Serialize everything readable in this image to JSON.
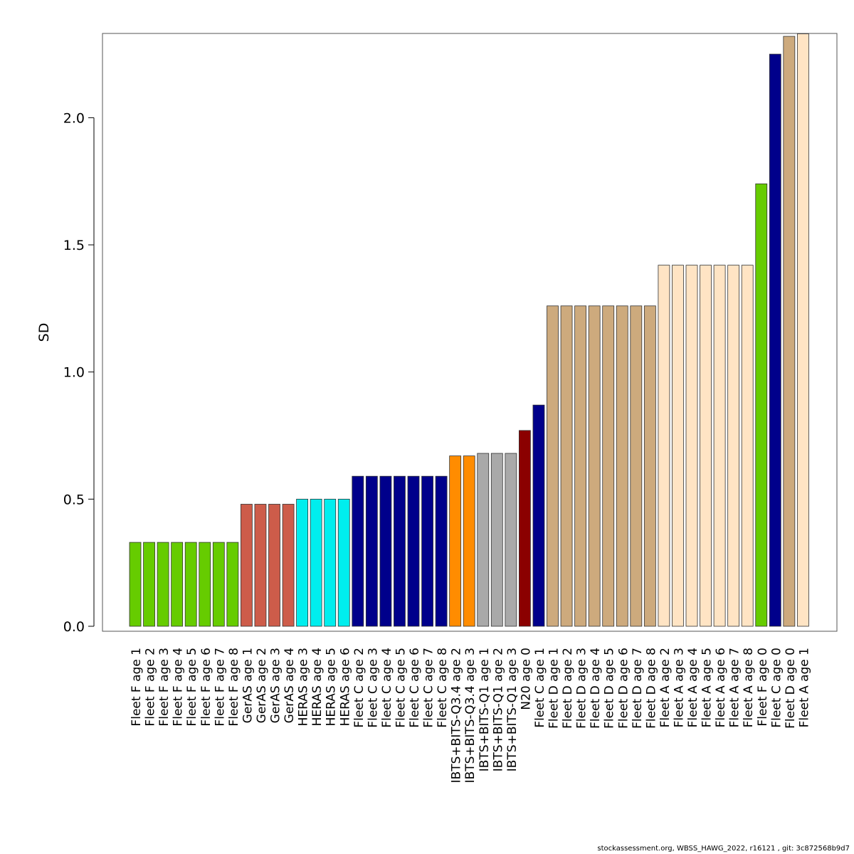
{
  "footer": "stockassessment.org, WBSS_HAWG_2022, r16121 , git: 3c872568b9d7",
  "chart_data": {
    "type": "bar",
    "ylabel": "SD",
    "ylim": [
      0,
      2.33
    ],
    "yticks": [
      "0.0",
      "0.5",
      "1.0",
      "1.5",
      "2.0"
    ],
    "grid": false,
    "bars": [
      {
        "label": "Fleet F age 1",
        "value": 0.33,
        "color": "#66CC00"
      },
      {
        "label": "Fleet F age 2",
        "value": 0.33,
        "color": "#66CC00"
      },
      {
        "label": "Fleet F age 3",
        "value": 0.33,
        "color": "#66CC00"
      },
      {
        "label": "Fleet F age 4",
        "value": 0.33,
        "color": "#66CC00"
      },
      {
        "label": "Fleet F age 5",
        "value": 0.33,
        "color": "#66CC00"
      },
      {
        "label": "Fleet F age 6",
        "value": 0.33,
        "color": "#66CC00"
      },
      {
        "label": "Fleet F age 7",
        "value": 0.33,
        "color": "#66CC00"
      },
      {
        "label": "Fleet F age 8",
        "value": 0.33,
        "color": "#66CC00"
      },
      {
        "label": "GerAS age 1",
        "value": 0.48,
        "color": "#CD5C4A"
      },
      {
        "label": "GerAS age 2",
        "value": 0.48,
        "color": "#CD5C4A"
      },
      {
        "label": "GerAS age 3",
        "value": 0.48,
        "color": "#CD5C4A"
      },
      {
        "label": "GerAS age 4",
        "value": 0.48,
        "color": "#CD5C4A"
      },
      {
        "label": "HERAS age 3",
        "value": 0.5,
        "color": "#00EEEE"
      },
      {
        "label": "HERAS age 4",
        "value": 0.5,
        "color": "#00EEEE"
      },
      {
        "label": "HERAS age 5",
        "value": 0.5,
        "color": "#00EEEE"
      },
      {
        "label": "HERAS age 6",
        "value": 0.5,
        "color": "#00EEEE"
      },
      {
        "label": "Fleet C age 2",
        "value": 0.59,
        "color": "#00008B"
      },
      {
        "label": "Fleet C age 3",
        "value": 0.59,
        "color": "#00008B"
      },
      {
        "label": "Fleet C age 4",
        "value": 0.59,
        "color": "#00008B"
      },
      {
        "label": "Fleet C age 5",
        "value": 0.59,
        "color": "#00008B"
      },
      {
        "label": "Fleet C age 6",
        "value": 0.59,
        "color": "#00008B"
      },
      {
        "label": "Fleet C age 7",
        "value": 0.59,
        "color": "#00008B"
      },
      {
        "label": "Fleet C age 8",
        "value": 0.59,
        "color": "#00008B"
      },
      {
        "label": "IBTS+BITS-Q3.4 age 2",
        "value": 0.67,
        "color": "#FF8C00"
      },
      {
        "label": "IBTS+BITS-Q3.4 age 3",
        "value": 0.67,
        "color": "#FF8C00"
      },
      {
        "label": "IBTS+BITS-Q1 age 1",
        "value": 0.68,
        "color": "#A9A9A9"
      },
      {
        "label": "IBTS+BITS-Q1 age 2",
        "value": 0.68,
        "color": "#A9A9A9"
      },
      {
        "label": "IBTS+BITS-Q1 age 3",
        "value": 0.68,
        "color": "#A9A9A9"
      },
      {
        "label": "N20 age 0",
        "value": 0.77,
        "color": "#8B0000"
      },
      {
        "label": "Fleet C age 1",
        "value": 0.87,
        "color": "#00008B"
      },
      {
        "label": "Fleet D age 1",
        "value": 1.26,
        "color": "#CDAA7D"
      },
      {
        "label": "Fleet D age 2",
        "value": 1.26,
        "color": "#CDAA7D"
      },
      {
        "label": "Fleet D age 3",
        "value": 1.26,
        "color": "#CDAA7D"
      },
      {
        "label": "Fleet D age 4",
        "value": 1.26,
        "color": "#CDAA7D"
      },
      {
        "label": "Fleet D age 5",
        "value": 1.26,
        "color": "#CDAA7D"
      },
      {
        "label": "Fleet D age 6",
        "value": 1.26,
        "color": "#CDAA7D"
      },
      {
        "label": "Fleet D age 7",
        "value": 1.26,
        "color": "#CDAA7D"
      },
      {
        "label": "Fleet D age 8",
        "value": 1.26,
        "color": "#CDAA7D"
      },
      {
        "label": "Fleet A age 2",
        "value": 1.42,
        "color": "#FFE4C4"
      },
      {
        "label": "Fleet A age 3",
        "value": 1.42,
        "color": "#FFE4C4"
      },
      {
        "label": "Fleet A age 4",
        "value": 1.42,
        "color": "#FFE4C4"
      },
      {
        "label": "Fleet A age 5",
        "value": 1.42,
        "color": "#FFE4C4"
      },
      {
        "label": "Fleet A age 6",
        "value": 1.42,
        "color": "#FFE4C4"
      },
      {
        "label": "Fleet A age 7",
        "value": 1.42,
        "color": "#FFE4C4"
      },
      {
        "label": "Fleet A age 8",
        "value": 1.42,
        "color": "#FFE4C4"
      },
      {
        "label": "Fleet F age 0",
        "value": 1.74,
        "color": "#66CC00"
      },
      {
        "label": "Fleet C age 0",
        "value": 2.25,
        "color": "#00008B"
      },
      {
        "label": "Fleet D age 0",
        "value": 2.32,
        "color": "#CDAA7D"
      },
      {
        "label": "Fleet A age 1",
        "value": 2.33,
        "color": "#FFE4C4"
      }
    ]
  }
}
